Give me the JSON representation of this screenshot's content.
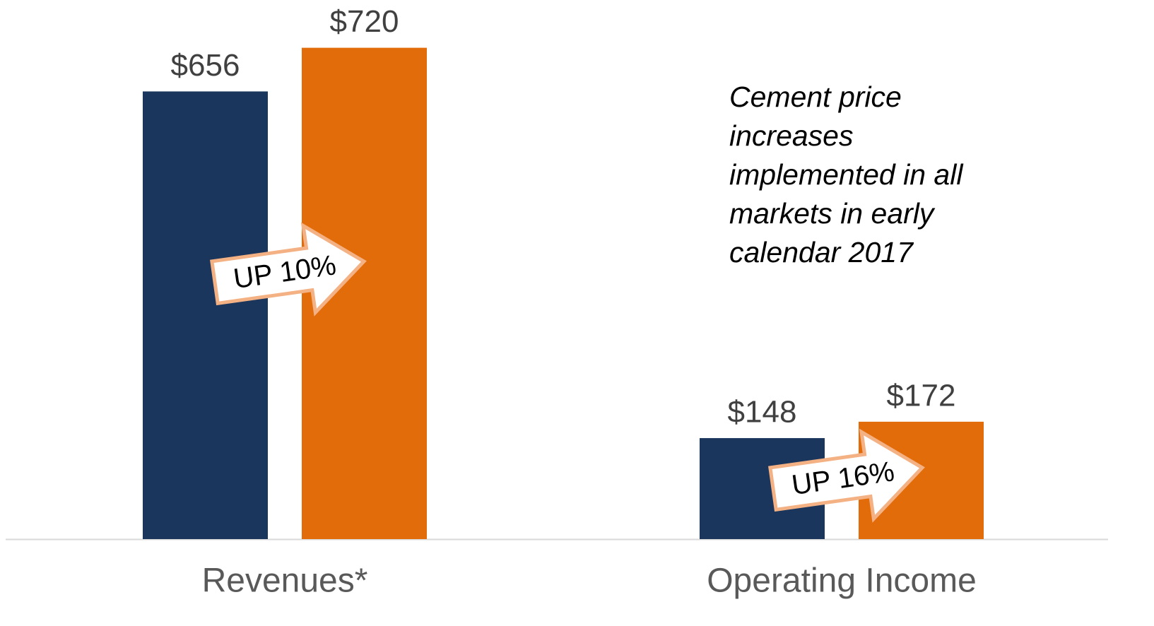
{
  "chart_data": {
    "type": "bar",
    "categories": [
      "Revenues*",
      "Operating Income"
    ],
    "series": [
      {
        "color": "#1b365d",
        "values": [
          656,
          148
        ],
        "value_labels": [
          "$656",
          "$148"
        ]
      },
      {
        "color": "#e36c0a",
        "values": [
          720,
          172
        ],
        "value_labels": [
          "$720",
          "$172"
        ]
      }
    ],
    "ylim": [
      0,
      790
    ],
    "annotations": [
      "UP 10%",
      "UP 16%"
    ],
    "note": [
      "Cement price",
      "increases",
      "implemented in all",
      "markets in early",
      "calendar 2017"
    ]
  }
}
